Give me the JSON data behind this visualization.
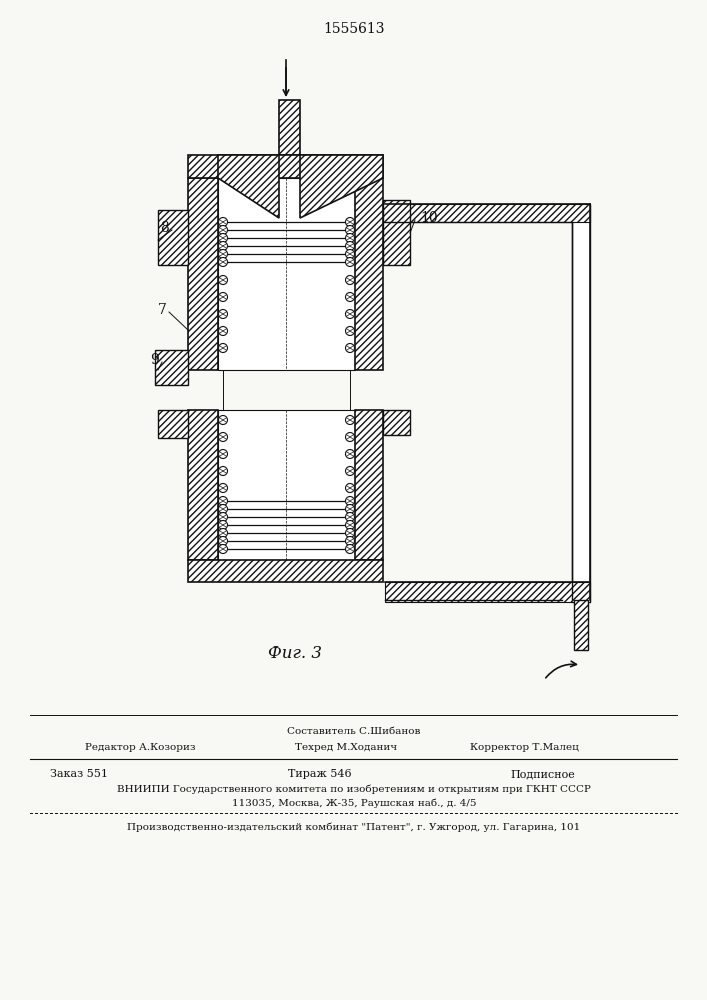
{
  "patent_number": "1555613",
  "fig_label": "Фиг. 3",
  "bg_color": "#f8f8f4",
  "line_color": "#111111",
  "footer": {
    "col2_line1": "Составитель С.Шибанов",
    "col1_line2": "Редактор А.Козориз",
    "col2_line2": "Техред М.Ходанич",
    "col3_line2": "Корректор Т.Малец",
    "zak": "Заказ 551",
    "tir": "Тираж 546",
    "pod": "Подписное",
    "line4": "ВНИИПИ Государственного комитета по изобретениям и открытиям при ГКНТ СССР",
    "line5": "113035, Москва, Ж-35, Раушская наб., д. 4/5",
    "line6": "Производственно-издательский комбинат \"Патент\", г. Ужгород, ул. Гагарина, 101"
  }
}
